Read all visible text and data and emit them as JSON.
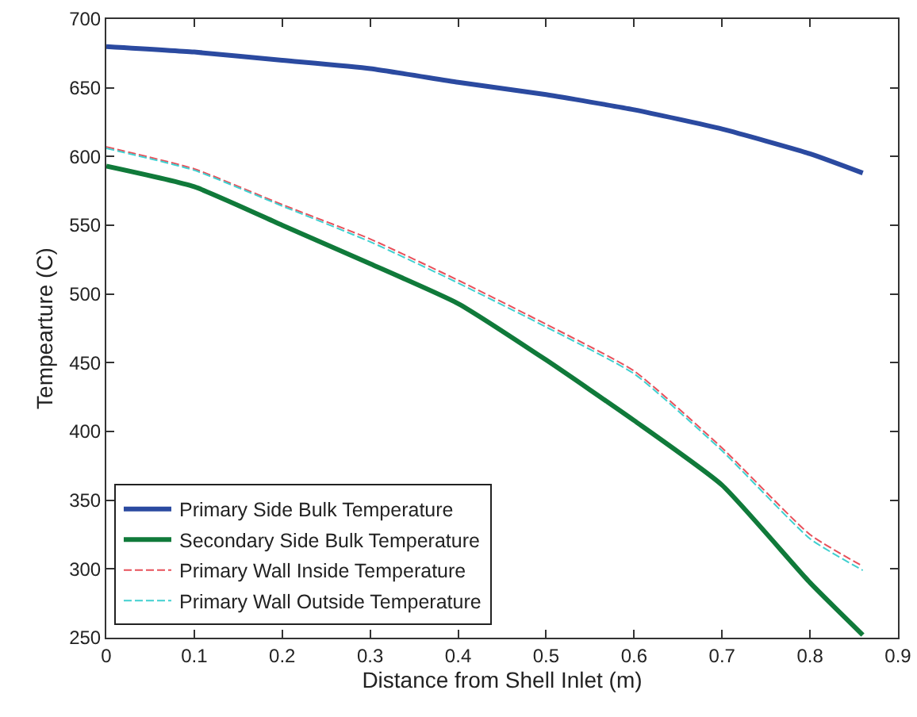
{
  "chart_data": {
    "type": "line",
    "xlabel": "Distance from Shell Inlet (m)",
    "ylabel": "Tempearture (C)",
    "x": [
      0,
      0.1,
      0.2,
      0.3,
      0.4,
      0.5,
      0.6,
      0.7,
      0.8,
      0.86
    ],
    "series": [
      {
        "name": "Primary Side Bulk Temperature",
        "color": "#2b4aa0",
        "line_style": "solid",
        "values": [
          680,
          676,
          670,
          664,
          654,
          645,
          634,
          620,
          602,
          588
        ]
      },
      {
        "name": "Secondary Side Bulk Temperature",
        "color": "#107a3a",
        "line_style": "solid",
        "values": [
          593,
          578,
          550,
          522,
          493,
          452,
          408,
          361,
          290,
          252
        ]
      },
      {
        "name": "Primary Wall Inside Temperature",
        "color": "#e8505a",
        "line_style": "dashed",
        "values": [
          607,
          591,
          565,
          540,
          510,
          478,
          444,
          388,
          325,
          302
        ]
      },
      {
        "name": "Primary Wall Outside Temperature",
        "color": "#40d0d0",
        "line_style": "dashed",
        "values": [
          606,
          590,
          564,
          538,
          508,
          476,
          442,
          386,
          322,
          299
        ]
      }
    ],
    "xlim": [
      0,
      0.9
    ],
    "xticks": [
      0,
      0.1,
      0.2,
      0.3,
      0.4,
      0.5,
      0.6,
      0.7,
      0.8,
      0.9
    ],
    "ylim": [
      250,
      700
    ],
    "yticks": [
      250,
      300,
      350,
      400,
      450,
      500,
      550,
      600,
      650,
      700
    ],
    "grid": false,
    "legend": "bottom left",
    "marker": "none"
  }
}
